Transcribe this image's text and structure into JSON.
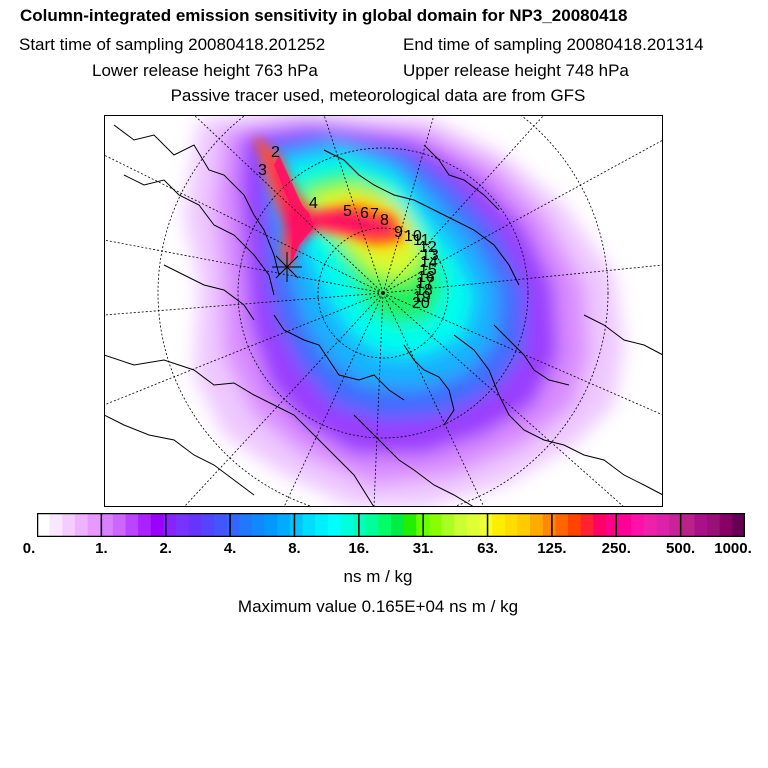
{
  "header": {
    "title": "Column-integrated emission sensitivity in global domain for NP3_20080418",
    "start_sampling": "Start time of sampling 20080418.201252",
    "end_sampling": "End time of sampling 20080418.201314",
    "lower_release": "Lower release height  763 hPa",
    "upper_release": "Upper release height  748 hPa",
    "tracer_note": "Passive tracer used, meteorological data are from GFS"
  },
  "map": {
    "projection": "north-polar-stereographic",
    "release_marker": "star-cross",
    "trajectory_labels": [
      "2",
      "3",
      "4",
      "5",
      "6",
      "7",
      "8",
      "9",
      "10",
      "11",
      "12",
      "13",
      "14",
      "15",
      "16",
      "17",
      "18",
      "19",
      "20"
    ],
    "colors": {
      "ocean": "#ffffff",
      "coast": "#000000",
      "trajectory": "#ff1060"
    }
  },
  "colorbar": {
    "unit": "ns m / kg",
    "tick_labels": [
      "0.",
      "1.",
      "2.",
      "4.",
      "8.",
      "16.",
      "31.",
      "63.",
      "125.",
      "250.",
      "500.",
      "1000."
    ],
    "colors": [
      "#ffffff",
      "#fbe6ff",
      "#f5ccff",
      "#eeb3ff",
      "#e799ff",
      "#d980ff",
      "#cc66ff",
      "#bb44ff",
      "#aa22ff",
      "#9900ff",
      "#8822ff",
      "#7733ff",
      "#6633ff",
      "#5544ff",
      "#4455ff",
      "#3366ff",
      "#2277ff",
      "#1188ff",
      "#0099ff",
      "#00aaff",
      "#00c4ff",
      "#00ddff",
      "#00f0ff",
      "#00ffff",
      "#00ffdd",
      "#00ffbb",
      "#00ff99",
      "#00ff66",
      "#00ee44",
      "#22ee00",
      "#66ff00",
      "#88ff00",
      "#aaff22",
      "#ccff33",
      "#ddff33",
      "#eeff33",
      "#ffee00",
      "#ffdd00",
      "#ffcc00",
      "#ffaa00",
      "#ff8800",
      "#ff6600",
      "#ff4400",
      "#ff2233",
      "#ff0066",
      "#ff0088",
      "#ff0099",
      "#ff11aa",
      "#ee22aa",
      "#dd22aa",
      "#cc2299",
      "#bb2288",
      "#aa1188",
      "#991177",
      "#880066",
      "#660055"
    ]
  },
  "max_value": "Maximum value  0.165E+04 ns m / kg"
}
